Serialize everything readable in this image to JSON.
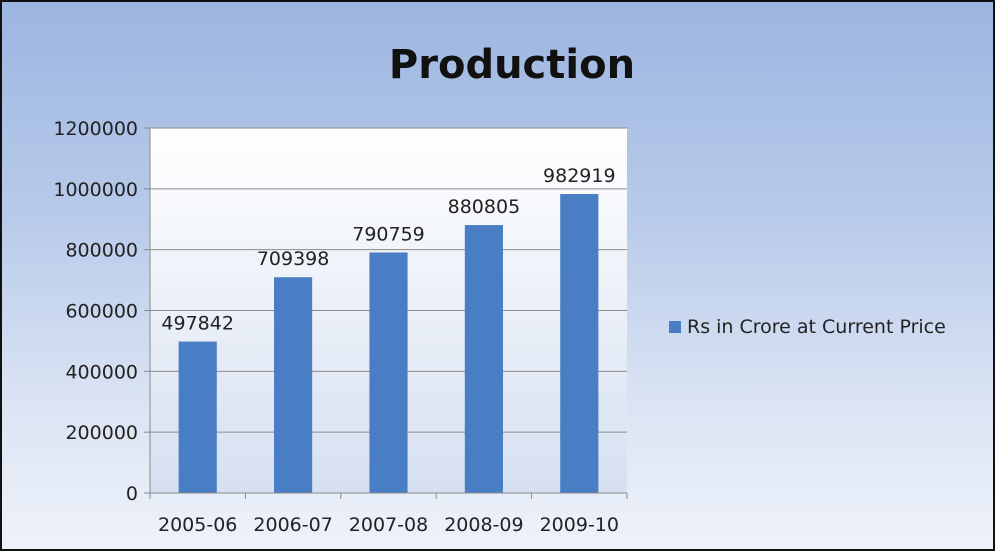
{
  "chart_data": {
    "type": "bar",
    "title": "Production",
    "categories": [
      "2005-06",
      "2006-07",
      "2007-08",
      "2008-09",
      "2009-10"
    ],
    "series": [
      {
        "name": "Rs in Crore at Current Price",
        "values": [
          497842,
          709398,
          790759,
          880805,
          982919
        ],
        "color": "#4a7ec4"
      }
    ],
    "ylim": [
      0,
      1200000
    ],
    "yticks": [
      "0",
      "200000",
      "400000",
      "600000",
      "800000",
      "1000000",
      "1200000"
    ],
    "grid": true,
    "legend": "right"
  }
}
